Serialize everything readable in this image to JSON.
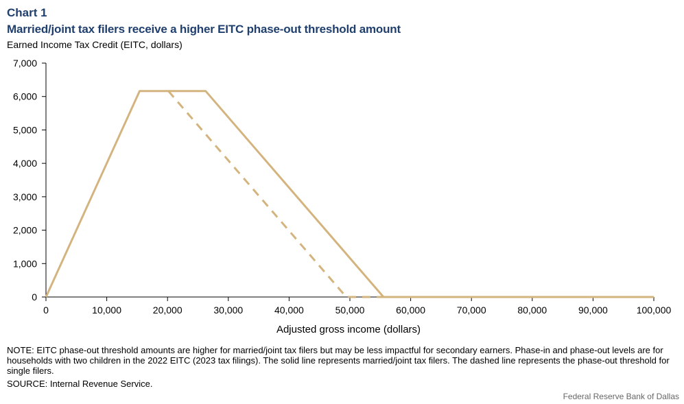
{
  "header": {
    "chart_number": "Chart 1",
    "title": "Married/joint tax filers receive a higher EITC phase-out threshold amount",
    "y_axis_label": "Earned Income Tax Credit (EITC, dollars)"
  },
  "footer": {
    "note": "NOTE: EITC phase-out threshold amounts are higher for married/joint tax filers but may be less impactful for secondary earners. Phase-in and phase-out levels are for households with two children in the 2022 EITC (2023 tax filings). The solid line represents married/joint tax filers. The dashed line represents the phase-out threshold for single filers.",
    "source": "SOURCE: Internal Revenue Service.",
    "credit": "Federal Reserve Bank of Dallas"
  },
  "colors": {
    "series": "#d4b47e",
    "axis": "#000000",
    "title": "#1f3f6e"
  },
  "chart_data": {
    "type": "line",
    "title": "Married/joint tax filers receive a higher EITC phase-out threshold amount",
    "xlabel": "Adjusted gross income (dollars)",
    "ylabel": "Earned Income Tax Credit (EITC, dollars)",
    "xlim": [
      0,
      100000
    ],
    "ylim": [
      0,
      7000
    ],
    "x_ticks": [
      "0",
      "10,000",
      "20,000",
      "30,000",
      "40,000",
      "50,000",
      "60,000",
      "70,000",
      "80,000",
      "90,000",
      "100,000"
    ],
    "y_ticks": [
      "0",
      "1,000",
      "2,000",
      "3,000",
      "4,000",
      "5,000",
      "6,000",
      "7,000"
    ],
    "grid": false,
    "legend": "none",
    "series": [
      {
        "style": "solid",
        "x": [
          0,
          15410,
          26260,
          55530,
          100000
        ],
        "y": [
          0,
          6164,
          6164,
          0,
          0
        ]
      },
      {
        "style": "dashed",
        "x": [
          20130,
          49400,
          55530
        ],
        "y": [
          6164,
          0,
          0
        ]
      }
    ]
  }
}
